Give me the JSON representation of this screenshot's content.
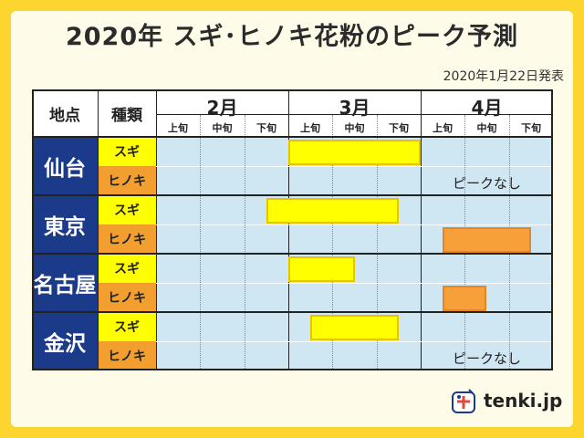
{
  "title": "2020年 スギ･ヒノキ花粉のピーク予測",
  "date": "2020年1月22日発表",
  "headers": {
    "location": "地点",
    "type": "種類"
  },
  "months": [
    "2月",
    "3月",
    "4月"
  ],
  "dekads": [
    "上旬",
    "中旬",
    "下旬"
  ],
  "labels": {
    "sugi": "スギ",
    "hinoki": "ヒノキ"
  },
  "no_peak": "ピークなし",
  "logo": "tenki.jp",
  "colors": {
    "sugi": "#ffff00",
    "hinoki": "#f7a03a",
    "city": "#1b3a8a",
    "plot": "#cfe6f3",
    "frame": "#fdd52f"
  },
  "chart_data": {
    "type": "table",
    "periods": [
      "2月上旬",
      "2月中旬",
      "2月下旬",
      "3月上旬",
      "3月中旬",
      "3月下旬",
      "4月上旬",
      "4月中旬",
      "4月下旬"
    ],
    "rows": [
      {
        "city": "仙台",
        "sugi": [
          3.0,
          6.0
        ],
        "hinoki": null
      },
      {
        "city": "東京",
        "sugi": [
          2.5,
          5.5
        ],
        "hinoki": [
          6.5,
          8.5
        ]
      },
      {
        "city": "名古屋",
        "sugi": [
          3.0,
          4.5
        ],
        "hinoki": [
          6.5,
          7.5
        ]
      },
      {
        "city": "金沢",
        "sugi": [
          3.5,
          5.5
        ],
        "hinoki": null
      }
    ]
  }
}
